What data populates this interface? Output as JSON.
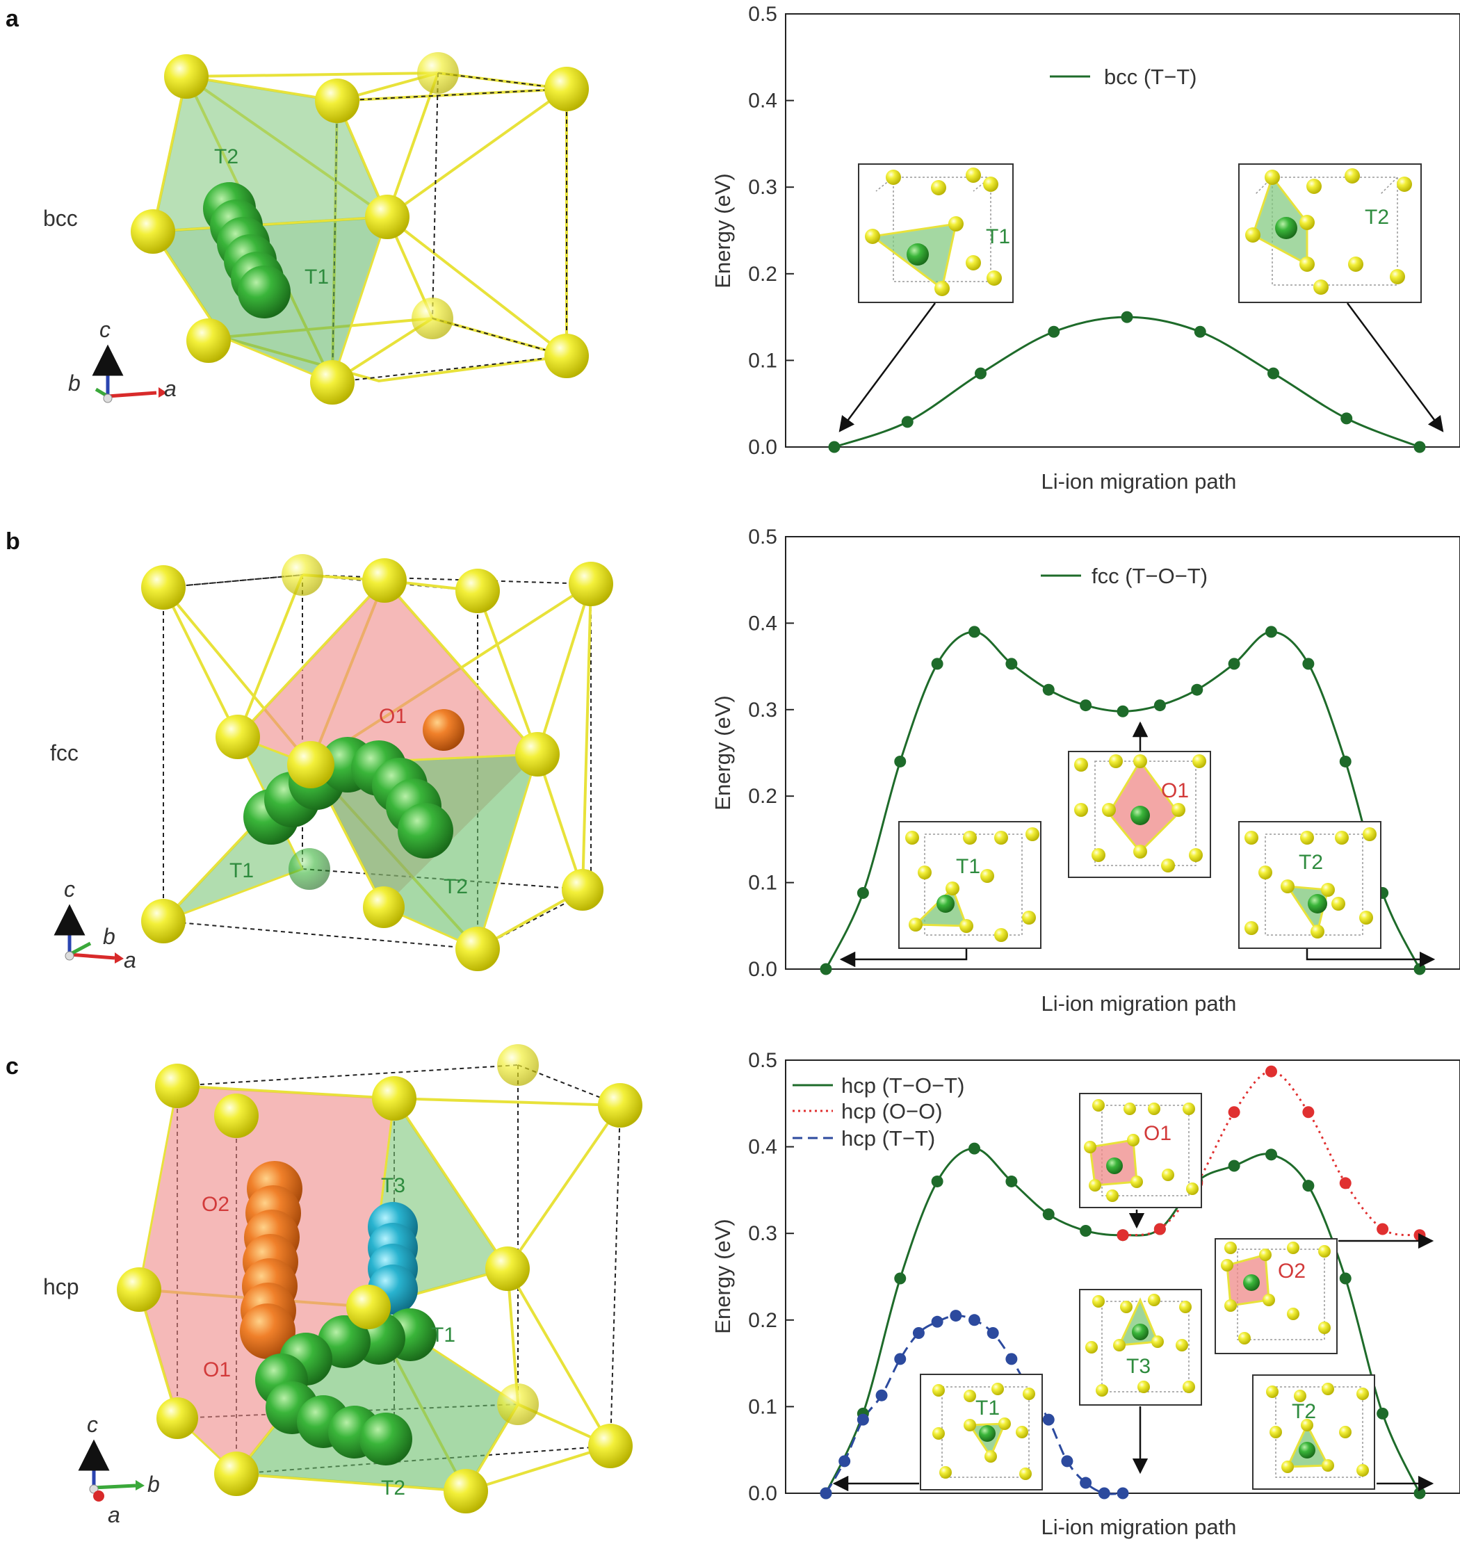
{
  "colors": {
    "green_line": "#1e6b2a",
    "green_dot": "#1e6b2a",
    "red": "#e03030",
    "blue": "#2c4a9e",
    "yellow_atom": "#f2ef2a",
    "green_poly": "#7dc77a",
    "red_poly": "#ef8a88"
  },
  "panels": [
    {
      "letter": "a",
      "structure": "bcc",
      "sites": [
        "T2",
        "T1"
      ],
      "axes": {
        "c": "c",
        "b": "b",
        "a": "a"
      },
      "insets": [
        {
          "label": "T1"
        },
        {
          "label": "T2"
        }
      ]
    },
    {
      "letter": "b",
      "structure": "fcc",
      "sites": [
        "O1",
        "T1",
        "T2"
      ],
      "axes": {
        "c": "c",
        "b": "b",
        "a": "a"
      },
      "insets": [
        {
          "label": "O1"
        },
        {
          "label": "T1"
        },
        {
          "label": "T2"
        }
      ]
    },
    {
      "letter": "c",
      "structure": "hcp",
      "sites": [
        "T3",
        "O2",
        "T1",
        "O1",
        "T2"
      ],
      "axes": {
        "c": "c",
        "b": "b",
        "a": "a"
      },
      "insets": [
        {
          "label": "O1"
        },
        {
          "label": "O2"
        },
        {
          "label": "T3"
        },
        {
          "label": "T1"
        },
        {
          "label": "T2"
        }
      ]
    }
  ],
  "chart_data": [
    {
      "type": "line",
      "panel": "a",
      "xlabel": "Li-ion migration path",
      "ylabel": "Energy (eV)",
      "ylim": [
        0,
        0.5
      ],
      "yticks": [
        "0.0",
        "0.1",
        "0.2",
        "0.3",
        "0.4",
        "0.5"
      ],
      "legend_position": "top-center",
      "series": [
        {
          "name": "bcc (T−T)",
          "style": "solid",
          "color": "green",
          "x": [
            0,
            1,
            2,
            3,
            4,
            5,
            6,
            7,
            8
          ],
          "y": [
            0.0,
            0.029,
            0.085,
            0.133,
            0.15,
            0.133,
            0.085,
            0.033,
            0.0
          ]
        }
      ]
    },
    {
      "type": "line",
      "panel": "b",
      "xlabel": "Li-ion migration path",
      "ylabel": "Energy (eV)",
      "ylim": [
        0,
        0.5
      ],
      "yticks": [
        "0.0",
        "0.1",
        "0.2",
        "0.3",
        "0.4",
        "0.5"
      ],
      "legend_position": "top-center",
      "series": [
        {
          "name": "fcc (T−O−T)",
          "style": "solid",
          "color": "green",
          "x": [
            0,
            1,
            2,
            3,
            4,
            5,
            6,
            7,
            8,
            9,
            10,
            11,
            12,
            13,
            14,
            15,
            16
          ],
          "y": [
            0.0,
            0.088,
            0.24,
            0.353,
            0.39,
            0.353,
            0.323,
            0.305,
            0.298,
            0.305,
            0.323,
            0.353,
            0.39,
            0.353,
            0.24,
            0.088,
            0.0
          ]
        }
      ]
    },
    {
      "type": "line",
      "panel": "c",
      "xlabel": "Li-ion migration path",
      "ylabel": "Energy (eV)",
      "ylim": [
        0,
        0.5
      ],
      "yticks": [
        "0.0",
        "0.1",
        "0.2",
        "0.3",
        "0.4",
        "0.5"
      ],
      "legend_position": "top-left",
      "series": [
        {
          "name": "hcp (T−O−T)",
          "style": "solid",
          "color": "green",
          "x": [
            0,
            1,
            2,
            3,
            4,
            5,
            6,
            7,
            8,
            9,
            10,
            11,
            12,
            13,
            14,
            15,
            16
          ],
          "y": [
            0.0,
            0.092,
            0.248,
            0.36,
            0.398,
            0.36,
            0.322,
            0.303,
            0.298,
            0.305,
            0.36,
            0.378,
            0.391,
            0.355,
            0.248,
            0.092,
            0.0
          ]
        },
        {
          "name": "hcp (O−O)",
          "style": "dotted",
          "color": "red",
          "x": [
            8,
            9,
            10,
            11,
            12,
            13,
            14,
            15,
            16
          ],
          "y": [
            0.298,
            0.305,
            0.358,
            0.44,
            0.487,
            0.44,
            0.358,
            0.305,
            0.298
          ]
        },
        {
          "name": "hcp (T−T)",
          "style": "dashed",
          "color": "blue",
          "x": [
            0,
            0.5,
            1,
            1.5,
            2,
            2.5,
            3,
            3.5,
            4,
            4.5,
            5,
            5.5,
            6,
            6.5,
            7,
            7.5,
            8
          ],
          "y": [
            0.0,
            0.037,
            0.085,
            0.113,
            0.155,
            0.185,
            0.198,
            0.205,
            0.2,
            0.185,
            0.155,
            0.118,
            0.085,
            0.037,
            0.012,
            0.0,
            0.0
          ]
        }
      ]
    }
  ]
}
